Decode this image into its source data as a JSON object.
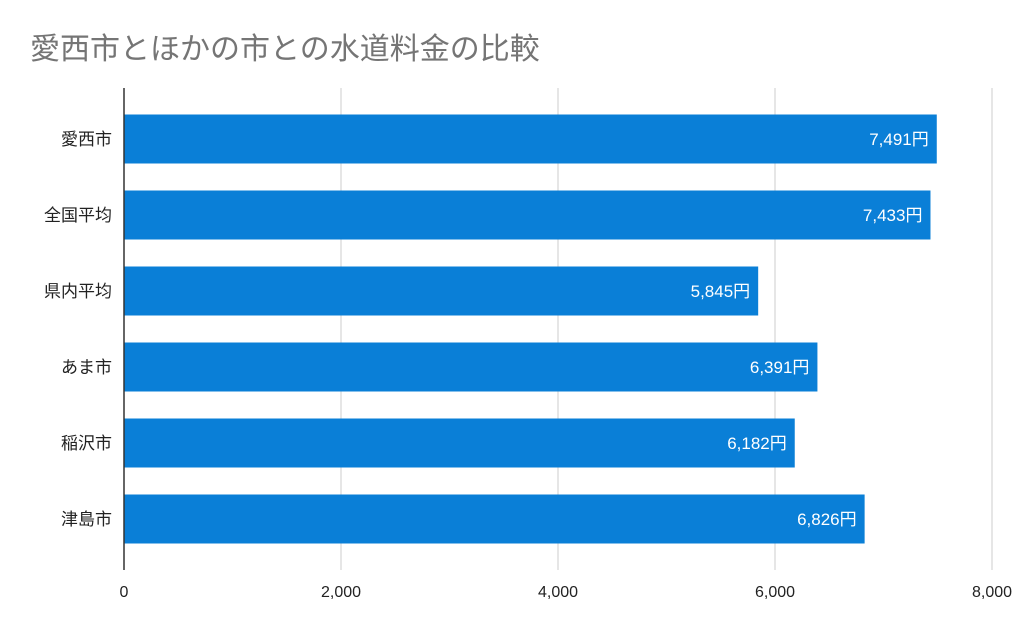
{
  "chart_data": {
    "type": "bar",
    "orientation": "horizontal",
    "title": "愛西市とほかの市との水道料金の比較",
    "categories": [
      "愛西市",
      "全国平均",
      "県内平均",
      "あま市",
      "稲沢市",
      "津島市"
    ],
    "values": [
      7491,
      7433,
      5845,
      6391,
      6182,
      6826
    ],
    "data_labels": [
      "7,491円",
      "7,433円",
      "5,845円",
      "6,391円",
      "6,182円",
      "6,826円"
    ],
    "xlim": [
      0,
      8000
    ],
    "x_ticks": [
      0,
      2000,
      4000,
      6000,
      8000
    ],
    "x_tick_labels": [
      "0",
      "2,000",
      "4,000",
      "6,000",
      "8,000"
    ],
    "grid": true,
    "legend": "none",
    "colors": {
      "bar": "#0a7fd7",
      "grid": "#cccccc",
      "title": "#757575"
    }
  }
}
